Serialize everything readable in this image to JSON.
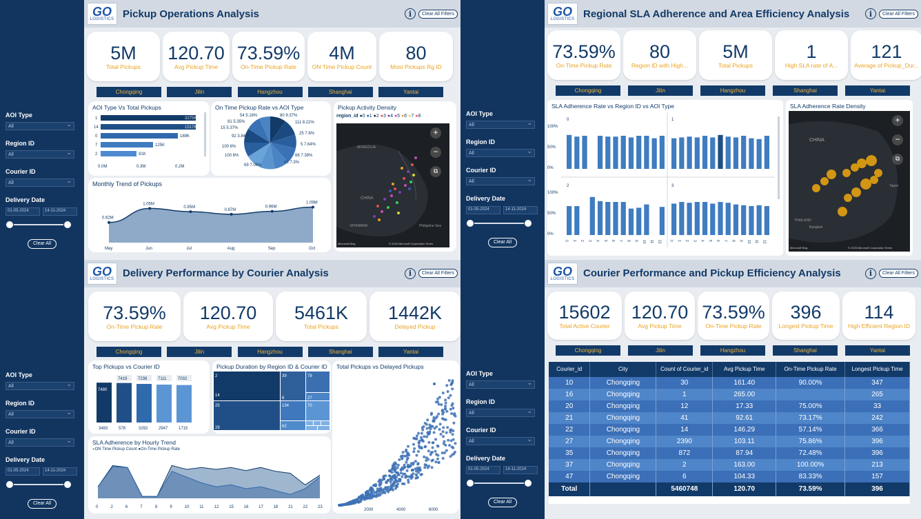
{
  "brand": {
    "logo_main": "GO",
    "logo_sub": "LOGISTICS"
  },
  "common": {
    "clear_filters": "Clear All Filters",
    "info": "i",
    "filter_labels": [
      "AOI Type",
      "Region ID",
      "Courier ID",
      "Delivery Date"
    ],
    "filter_value": "All",
    "date_from": "01-05-2024",
    "date_to": "14-11-2024",
    "clear_all": "Clear All",
    "cities": [
      "Chongqing",
      "Jilin",
      "Hangzhou",
      "Shanghai",
      "Yantai"
    ]
  },
  "q1": {
    "title": "Pickup Operations Analysis",
    "kpis": [
      {
        "value": "5M",
        "label": "Total Pickups"
      },
      {
        "value": "120.70",
        "label": "Avg Pickup Time"
      },
      {
        "value": "73.59%",
        "label": "On-Time Pickup Rate"
      },
      {
        "value": "4M",
        "label": "ON Time Pickup Count"
      },
      {
        "value": "80",
        "label": "Most Pickups Rg ID"
      }
    ],
    "aoi_chart": {
      "title": "AOI Type Vs Total Pickups",
      "rows": [
        {
          "cat": "1",
          "label": "3275K",
          "value": 3275
        },
        {
          "cat": "14",
          "label": "1517K",
          "value": 1517
        },
        {
          "cat": "0",
          "label": "189K",
          "value": 189
        },
        {
          "cat": "7",
          "label": "125K",
          "value": 125
        },
        {
          "cat": "2",
          "label": "91K",
          "value": 91
        }
      ],
      "ticks": [
        "0.0M",
        "0.3M",
        "0.2M"
      ]
    },
    "pie": {
      "title": "On Time Pickup Rate vs AOI Type",
      "labels": [
        "54 5.18%",
        "80 9.37%",
        "81 5.35%",
        "111 8.22%",
        "15 5.37%",
        "25 7.8%",
        "92 3.84%",
        "5 7.64%",
        "95 5.87%",
        "100 6%",
        "66 7.39%",
        "43 7.3%",
        "69 7.06%"
      ]
    },
    "map": {
      "title": "Pickup Activity Density",
      "legend_title": "region_id",
      "legend_items": [
        "0",
        "1",
        "2",
        "3",
        "4",
        "5",
        "6",
        "7",
        "8"
      ],
      "labels": [
        "MONGOLIA",
        "CHINA",
        "MYANMAR",
        "Philippine Sea"
      ],
      "attrib_left": "Microsoft Bing",
      "attrib_right": "© 2025 Microsoft Corporation  Terms"
    },
    "trend": {
      "title": "Monthly Trend of Pickups",
      "months": [
        "May",
        "Jun",
        "Jul",
        "Aug",
        "Sep",
        "Oct"
      ],
      "values": [
        0.62,
        1.05,
        0.95,
        0.87,
        0.96,
        1.09
      ],
      "labels": [
        "0.62M",
        "1.05M",
        "0.95M",
        "0.87M",
        "0.96M",
        "1.09M"
      ]
    }
  },
  "q2": {
    "title": "Regional SLA Adherence and Area Efficiency Analysis",
    "kpis": [
      {
        "value": "73.59%",
        "label": "On-Time Pickup Rate"
      },
      {
        "value": "80",
        "label": "Region ID with High..."
      },
      {
        "value": "5M",
        "label": "Total Pickups"
      },
      {
        "value": "1",
        "label": "High SLA rate of A..."
      },
      {
        "value": "121",
        "label": "Average of Pickup_Dur..."
      }
    ],
    "sla_chart": {
      "title": "SLA Adherence Rate vs Region ID vs AOI Type",
      "yticks": [
        "100%",
        "50%",
        "0%"
      ],
      "panels": [
        "0",
        "1",
        "2",
        "3"
      ],
      "xcats": [
        "0",
        "1",
        "2",
        "3",
        "4",
        "5",
        "6",
        "7",
        "8",
        "9",
        "10",
        "11",
        "12"
      ],
      "panel_values": [
        [
          0.82,
          0.78,
          0.8,
          0.0,
          0.8,
          0.78,
          0.78,
          0.8,
          0.76,
          0.8,
          0.8,
          0.74,
          0.8
        ],
        [
          0.74,
          0.76,
          0.78,
          0.76,
          0.8,
          0.76,
          0.82,
          0.78,
          0.76,
          0.8,
          0.74,
          0.72,
          0.8
        ],
        [
          0.7,
          0.7,
          0.0,
          0.92,
          0.82,
          0.8,
          0.8,
          0.8,
          0.64,
          0.66,
          0.74,
          0.0,
          0.68
        ],
        [
          0.76,
          0.8,
          0.78,
          0.8,
          0.8,
          0.76,
          0.8,
          0.78,
          0.74,
          0.72,
          0.7,
          0.72,
          0.7
        ]
      ]
    },
    "map": {
      "title": "SLA Adherence Rate Density",
      "labels": [
        "CHINA",
        "Taipei",
        "THAILAND",
        "Bangkok"
      ],
      "attrib_left": "Microsoft Bing",
      "attrib_right": "© 2025 Microsoft Corporation  Terms"
    }
  },
  "q3": {
    "title": "Delivery Performance by Courier Analysis",
    "kpis": [
      {
        "value": "73.59%",
        "label": "On-Time Pickup Rate"
      },
      {
        "value": "120.70",
        "label": "Avg Pickup Time"
      },
      {
        "value": "5461K",
        "label": "Total Pickups"
      },
      {
        "value": "1442K",
        "label": "Delayed Pickup"
      }
    ],
    "top": {
      "title": "Top Pickups vs Courier ID",
      "bars": [
        {
          "top": "7480",
          "bottom": "3483",
          "value": 7480
        },
        {
          "top": "7419",
          "bottom": "578",
          "value": 7419
        },
        {
          "top": "7238",
          "bottom": "3292",
          "value": 7238
        },
        {
          "top": "7111",
          "bottom": "2947",
          "value": 7111
        },
        {
          "top": "7032",
          "bottom": "1715",
          "value": 7032
        }
      ]
    },
    "tree": {
      "title": "Pickup Duration by Region ID & Courier ID",
      "labels": [
        "2",
        "39",
        "78",
        "14",
        "6",
        "27",
        "25",
        "134",
        "70",
        "28",
        "62"
      ]
    },
    "scatter": {
      "title": "Total Pickups vs Delayed Pickups",
      "xticks": [
        "2000",
        "4000",
        "6000"
      ]
    },
    "hourly": {
      "title": "SLA Adherence by Hourly Trend",
      "legend": [
        "ON Time Pickup Count",
        "On-Time Pickup Rate"
      ],
      "hours": [
        "0",
        "2",
        "6",
        "7",
        "8",
        "9",
        "10",
        "11",
        "12",
        "15",
        "16",
        "17",
        "18",
        "21",
        "22",
        "23"
      ],
      "count": [
        0.3,
        0.85,
        0.8,
        0.05,
        0.05,
        0.85,
        0.75,
        0.8,
        0.75,
        0.8,
        0.72,
        0.8,
        0.7,
        0.65,
        0.35,
        0.6
      ],
      "rate": [
        0.3,
        0.82,
        0.8,
        0.05,
        0.05,
        0.7,
        0.55,
        0.4,
        0.3,
        0.35,
        0.25,
        0.3,
        0.2,
        0.1,
        0.25,
        0.55
      ]
    }
  },
  "q4": {
    "title": "Courier Performance and Pickup Efficiency Analysis",
    "kpis": [
      {
        "value": "15602",
        "label": "Total Active Courier"
      },
      {
        "value": "120.70",
        "label": "Avg Pickup Time"
      },
      {
        "value": "73.59%",
        "label": "On-Time Pickup Rate"
      },
      {
        "value": "396",
        "label": "Longest Pickup Time"
      },
      {
        "value": "114",
        "label": "High Efficient Region ID"
      }
    ],
    "table": {
      "headers": [
        "Courier_id",
        "City",
        "Count of Courier_id",
        "Avg Pickup Time",
        "On-Time Pickup Rate",
        "Longest Pickup Time"
      ],
      "rows": [
        [
          "10",
          "Chongqing",
          "30",
          "161.40",
          "90.00%",
          "347"
        ],
        [
          "16",
          "Chongqing",
          "1",
          "265.00",
          "",
          "265"
        ],
        [
          "20",
          "Chongqing",
          "12",
          "17.33",
          "75.00%",
          "33"
        ],
        [
          "21",
          "Chongqing",
          "41",
          "92.61",
          "73.17%",
          "242"
        ],
        [
          "22",
          "Chongqing",
          "14",
          "146.29",
          "57.14%",
          "366"
        ],
        [
          "27",
          "Chongqing",
          "2390",
          "103.11",
          "75.86%",
          "396"
        ],
        [
          "35",
          "Chongqing",
          "872",
          "87.94",
          "72.48%",
          "396"
        ],
        [
          "37",
          "Chongqing",
          "2",
          "163.00",
          "100.00%",
          "213"
        ],
        [
          "47",
          "Chongqing",
          "6",
          "104.33",
          "83.33%",
          "157"
        ]
      ],
      "total": [
        "Total",
        "",
        "5460748",
        "120.70",
        "73.59%",
        "396"
      ]
    }
  }
}
